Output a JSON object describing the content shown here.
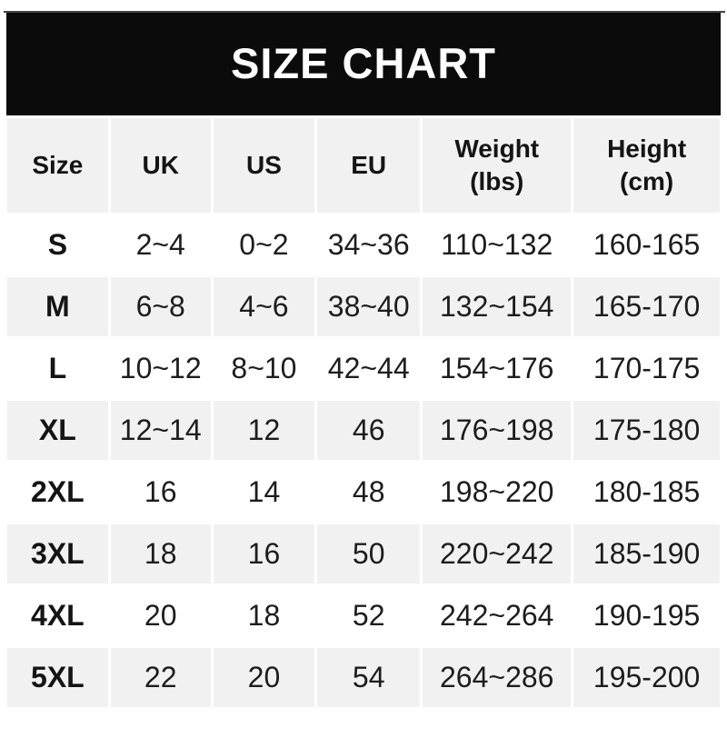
{
  "banner": {
    "title": "SIZE CHART"
  },
  "chart_data": {
    "type": "table",
    "title": "SIZE CHART",
    "headers": [
      {
        "label": "Size",
        "sub": ""
      },
      {
        "label": "UK",
        "sub": ""
      },
      {
        "label": "US",
        "sub": ""
      },
      {
        "label": "EU",
        "sub": ""
      },
      {
        "label": "Weight",
        "sub": "(lbs)"
      },
      {
        "label": "Height",
        "sub": "(cm)"
      }
    ],
    "rows": [
      {
        "size": "S",
        "uk": "2~4",
        "us": "0~2",
        "eu": "34~36",
        "weight": "110~132",
        "height": "160-165"
      },
      {
        "size": "M",
        "uk": "6~8",
        "us": "4~6",
        "eu": "38~40",
        "weight": "132~154",
        "height": "165-170"
      },
      {
        "size": "L",
        "uk": "10~12",
        "us": "8~10",
        "eu": "42~44",
        "weight": "154~176",
        "height": "170-175"
      },
      {
        "size": "XL",
        "uk": "12~14",
        "us": "12",
        "eu": "46",
        "weight": "176~198",
        "height": "175-180"
      },
      {
        "size": "2XL",
        "uk": "16",
        "us": "14",
        "eu": "48",
        "weight": "198~220",
        "height": "180-185"
      },
      {
        "size": "3XL",
        "uk": "18",
        "us": "16",
        "eu": "50",
        "weight": "220~242",
        "height": "185-190"
      },
      {
        "size": "4XL",
        "uk": "20",
        "us": "18",
        "eu": "52",
        "weight": "242~264",
        "height": "190-195"
      },
      {
        "size": "5XL",
        "uk": "22",
        "us": "20",
        "eu": "54",
        "weight": "264~286",
        "height": "195-200"
      }
    ]
  },
  "colors": {
    "banner_bg": "#0b0b0b",
    "banner_text": "#ffffff",
    "row_alt_bg": "#f1f1f1",
    "row_bg": "#ffffff",
    "text": "#1d1d1d"
  }
}
